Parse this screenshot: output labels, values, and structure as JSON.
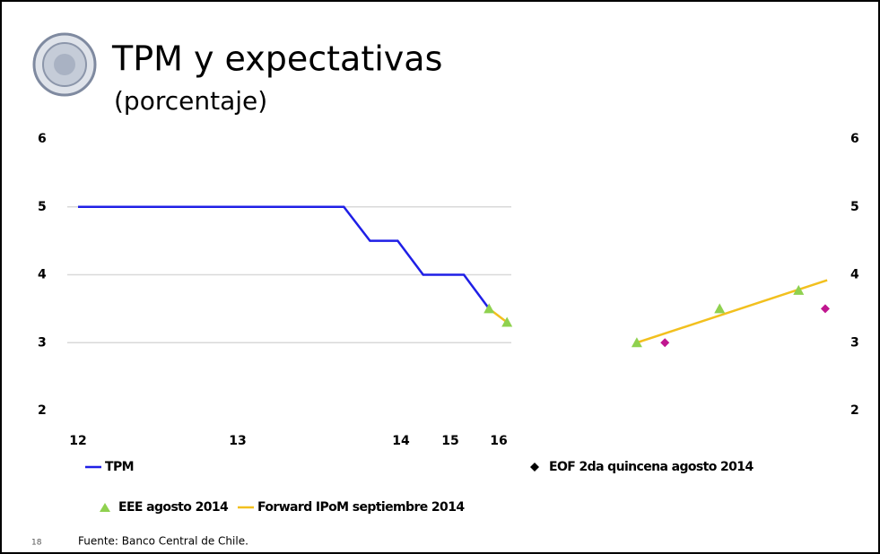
{
  "chart_data": {
    "type": "line",
    "title": "TPM y expectativas",
    "subtitle": "(porcentaje)",
    "source": "Fuente: Banco Central de Chile.",
    "page_number": "18",
    "xticks": [
      12,
      13,
      14,
      15,
      16
    ],
    "ylim": [
      2,
      6
    ],
    "yticks": [
      2,
      3,
      4,
      5,
      6
    ],
    "y2lim": [
      2,
      6
    ],
    "y2ticks": [
      2,
      3,
      4,
      5,
      6
    ],
    "grid": true,
    "series": [
      {
        "name": "TPM",
        "color": "#1f1fe6",
        "mark": "line",
        "x": [
          12,
          13.65,
          13.81,
          13.98,
          14.45,
          15.28,
          15.8
        ],
        "values": [
          5,
          5,
          4.5,
          4.5,
          4,
          4,
          3.5
        ]
      },
      {
        "name": "EOF 2da quincena agosto 2014",
        "color": "#c0168f",
        "mark": "diamond",
        "x": [
          19.43,
          22.74
        ],
        "values": [
          3.0,
          3.5
        ]
      },
      {
        "name": "EEE agosto 2014",
        "color": "#8fd14f",
        "mark": "triangle",
        "x": [
          15.8,
          16.17,
          18.85,
          20.56,
          22.19
        ],
        "values": [
          3.5,
          3.3,
          3.0,
          3.5,
          3.77
        ]
      },
      {
        "name": "Forward IPoM septiembre 2014",
        "color": "#f2c01e",
        "mark": "line",
        "x": [
          15.8,
          16.17,
          null,
          18.85,
          22.78
        ],
        "values": [
          3.5,
          3.3,
          null,
          3.0,
          3.92
        ]
      }
    ]
  }
}
